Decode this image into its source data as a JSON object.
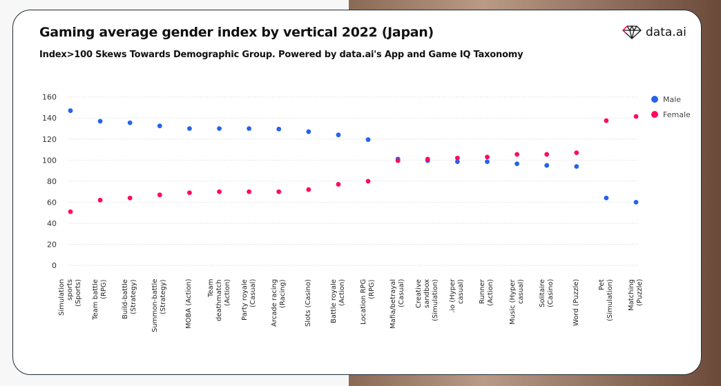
{
  "header": {
    "title": "Gaming average gender index by vertical 2022 (Japan)",
    "subtitle": "Index>100 Skews Towards Demographic Group. Powered by data.ai's App and Game IQ Taxonomy",
    "logo_text": "data.ai"
  },
  "chart_data": {
    "type": "scatter",
    "title": "Gaming average gender index by vertical 2022 (Japan)",
    "subtitle": "Index>100 Skews Towards Demographic Group. Powered by data.ai's App and Game IQ Taxonomy",
    "categories": [
      "Simulation sports\n(Sports)",
      "Team battle (RPG)",
      "Build-battle (Strategy)",
      "Summon-battle\n(Strategy)",
      "MOBA (Action)",
      "Team deathmatch\n(Action)",
      "Party royale (Casual)",
      "Arcade racing (Racing)",
      "Slots (Casino)",
      "Battle royale (Action)",
      "Location RPG (RPG)",
      "Mafia/betrayal\n(Casual)",
      "Creative sandbox\n(Simulation)",
      ".io (Hyper casual)",
      "Runner (Action)",
      "Music (Hyper casual)",
      "Solitaire (Casino)",
      "Word (Puzzle)",
      "Pet (Simulation)",
      "Matching (Puzzle)"
    ],
    "series": [
      {
        "name": "Male",
        "color": "#2563eb",
        "values": [
          147,
          137,
          135.5,
          132.5,
          130,
          130,
          130,
          129.5,
          127,
          124,
          119.5,
          101,
          99.5,
          98.5,
          98.5,
          96.5,
          95,
          94,
          64,
          60
        ]
      },
      {
        "name": "Female",
        "color": "#ff0a63",
        "values": [
          51,
          62,
          64,
          67,
          69,
          70,
          70,
          70,
          72,
          77,
          80,
          99.5,
          101,
          102,
          103,
          105.5,
          105.5,
          107,
          137.5,
          141.5
        ]
      }
    ],
    "yticks": [
      0,
      20,
      40,
      60,
      80,
      100,
      120,
      140,
      160
    ],
    "ylim": [
      0,
      160
    ],
    "grid": "horizontal dotted",
    "legend": "top-right"
  }
}
